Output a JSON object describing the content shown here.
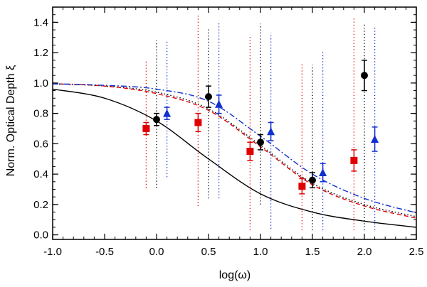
{
  "chart_data": {
    "type": "scatter",
    "xlabel": "log(ω)",
    "ylabel": "Norm. Optical Depth ξ",
    "xlim": [
      -1.0,
      2.5
    ],
    "ylim": [
      -0.03,
      1.5
    ],
    "xticks": [
      "-1.0",
      "-0.5",
      "0.0",
      "0.5",
      "1.0",
      "1.5",
      "2.0",
      "2.5"
    ],
    "xtick_values": [
      -1.0,
      -0.5,
      0.0,
      0.5,
      1.0,
      1.5,
      2.0,
      2.5
    ],
    "yticks": [
      "0.0",
      "0.2",
      "0.4",
      "0.6",
      "0.8",
      "1.0",
      "1.2",
      "1.4"
    ],
    "ytick_values": [
      0.0,
      0.2,
      0.4,
      0.6,
      0.8,
      1.0,
      1.2,
      1.4
    ],
    "grid": false,
    "legend": "none",
    "points": [
      {
        "color": "#e00000",
        "marker": "square",
        "x": [
          -0.1,
          0.4,
          0.9,
          1.4,
          1.9
        ],
        "y": [
          0.7,
          0.74,
          0.55,
          0.32,
          0.49
        ],
        "err": [
          0.04,
          0.06,
          0.06,
          0.05,
          0.07
        ],
        "range_low": [
          0.31,
          0.19,
          0.03,
          0.03,
          0.03
        ],
        "range_high": [
          1.15,
          1.45,
          1.31,
          1.13,
          1.43
        ]
      },
      {
        "color": "#000000",
        "marker": "circle",
        "x": [
          0.0,
          0.5,
          1.0,
          1.5,
          2.0
        ],
        "y": [
          0.76,
          0.91,
          0.61,
          0.36,
          1.05
        ],
        "err": [
          0.04,
          0.07,
          0.05,
          0.05,
          0.1
        ],
        "range_low": [
          0.31,
          0.24,
          0.2,
          0.03,
          0.03
        ],
        "range_high": [
          1.28,
          1.36,
          1.39,
          1.12,
          1.39
        ]
      },
      {
        "color": "#1030d0",
        "marker": "triangle",
        "x": [
          0.1,
          0.6,
          1.1,
          1.6,
          2.1
        ],
        "y": [
          0.8,
          0.86,
          0.68,
          0.41,
          0.63
        ],
        "err": [
          0.04,
          0.06,
          0.06,
          0.06,
          0.08
        ],
        "range_low": [
          0.38,
          0.24,
          0.04,
          0.03,
          0.03
        ],
        "range_high": [
          1.28,
          1.4,
          1.33,
          1.21,
          1.37
        ]
      }
    ],
    "curves": [
      {
        "color": "#000000",
        "style": "solid",
        "x": [
          -1.0,
          -0.5,
          0.0,
          0.5,
          1.0,
          1.5,
          2.0,
          2.5
        ],
        "y": [
          0.96,
          0.9,
          0.75,
          0.5,
          0.27,
          0.15,
          0.09,
          0.05
        ]
      },
      {
        "color": "#000000",
        "style": "dotted",
        "x": [
          -1.0,
          -0.5,
          0.0,
          0.5,
          1.0,
          1.5,
          2.0,
          2.5
        ],
        "y": [
          0.995,
          0.98,
          0.94,
          0.83,
          0.59,
          0.34,
          0.2,
          0.12
        ]
      },
      {
        "color": "#e00000",
        "style": "dashed",
        "x": [
          -1.0,
          -0.5,
          0.0,
          0.5,
          1.0,
          1.5,
          2.0,
          2.5
        ],
        "y": [
          0.995,
          0.98,
          0.93,
          0.82,
          0.58,
          0.33,
          0.19,
          0.11
        ]
      },
      {
        "color": "#1030d0",
        "style": "dashdot",
        "x": [
          -1.0,
          -0.5,
          0.0,
          0.5,
          1.0,
          1.5,
          2.0,
          2.5
        ],
        "y": [
          0.995,
          0.985,
          0.96,
          0.88,
          0.65,
          0.4,
          0.24,
          0.145
        ]
      }
    ]
  }
}
